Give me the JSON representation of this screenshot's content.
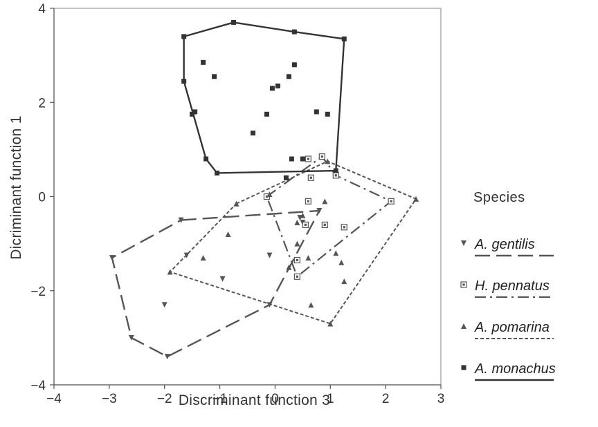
{
  "chart_data": {
    "type": "scatter",
    "title": "",
    "xlabel": "Discriminant function 3",
    "ylabel": "Dicriminant function 1",
    "xlim": [
      -4,
      3
    ],
    "ylim": [
      -4,
      4
    ],
    "x_ticks": [
      "−4",
      "−3",
      "−2",
      "−1",
      "0",
      "1",
      "2",
      "3"
    ],
    "y_ticks": [
      "−4",
      "−2",
      "0",
      "2",
      "4"
    ],
    "grid": false,
    "legend_title": "Species",
    "legend_position": "right",
    "series": [
      {
        "name": "A. gentilis",
        "marker": "triangle-down",
        "line_style": "long-dash",
        "color": "#555555",
        "points": [
          [
            -1.7,
            -0.5
          ],
          [
            -2.95,
            -1.3
          ],
          [
            -2.6,
            -3.0
          ],
          [
            -1.95,
            -3.4
          ],
          [
            -0.1,
            -2.3
          ],
          [
            0.8,
            -0.3
          ],
          [
            -1.6,
            -1.25
          ],
          [
            -2.0,
            -2.3
          ],
          [
            -0.95,
            -1.75
          ],
          [
            -0.1,
            -1.25
          ],
          [
            0.45,
            -0.45
          ],
          [
            0.5,
            -0.55
          ]
        ],
        "hull": [
          [
            -1.7,
            -0.5
          ],
          [
            0.8,
            -0.3
          ],
          [
            -0.1,
            -2.3
          ],
          [
            -1.95,
            -3.4
          ],
          [
            -2.6,
            -3.0
          ],
          [
            -2.95,
            -1.3
          ],
          [
            -1.7,
            -0.5
          ]
        ]
      },
      {
        "name": "H. pennatus",
        "marker": "square-dot",
        "line_style": "dash-dot",
        "color": "#555555",
        "points": [
          [
            -0.15,
            0.0
          ],
          [
            0.85,
            0.85
          ],
          [
            1.1,
            0.45
          ],
          [
            2.1,
            -0.1
          ],
          [
            0.4,
            -1.7
          ],
          [
            0.6,
            -0.1
          ],
          [
            0.65,
            0.4
          ],
          [
            0.55,
            -0.6
          ],
          [
            0.9,
            -0.6
          ],
          [
            1.25,
            -0.65
          ],
          [
            0.4,
            -1.35
          ],
          [
            0.6,
            0.8
          ]
        ],
        "hull": [
          [
            -0.15,
            0.0
          ],
          [
            0.85,
            0.85
          ],
          [
            1.1,
            0.45
          ],
          [
            2.1,
            -0.1
          ],
          [
            0.4,
            -1.7
          ],
          [
            -0.15,
            0.0
          ]
        ]
      },
      {
        "name": "A. pomarina",
        "marker": "triangle-up",
        "line_style": "short-dash",
        "color": "#555555",
        "points": [
          [
            -0.7,
            -0.15
          ],
          [
            0.95,
            0.75
          ],
          [
            2.55,
            -0.05
          ],
          [
            1.0,
            -2.7
          ],
          [
            -1.9,
            -1.6
          ],
          [
            -0.1,
            0.05
          ],
          [
            -1.3,
            -1.3
          ],
          [
            -0.85,
            -0.8
          ],
          [
            0.25,
            -1.5
          ],
          [
            0.4,
            -1.0
          ],
          [
            0.6,
            -1.3
          ],
          [
            0.65,
            -2.3
          ],
          [
            1.1,
            -1.2
          ],
          [
            1.2,
            -1.4
          ],
          [
            1.25,
            -1.8
          ],
          [
            0.4,
            -0.55
          ],
          [
            0.5,
            -0.4
          ],
          [
            0.9,
            -0.1
          ]
        ],
        "hull": [
          [
            -0.7,
            -0.15
          ],
          [
            0.95,
            0.75
          ],
          [
            2.55,
            -0.05
          ],
          [
            1.0,
            -2.7
          ],
          [
            -1.9,
            -1.6
          ],
          [
            -0.7,
            -0.15
          ]
        ]
      },
      {
        "name": "A. monachus",
        "marker": "square",
        "line_style": "solid",
        "color": "#333333",
        "points": [
          [
            -1.65,
            3.4
          ],
          [
            -0.75,
            3.7
          ],
          [
            0.35,
            3.5
          ],
          [
            1.25,
            3.35
          ],
          [
            1.1,
            0.55
          ],
          [
            -1.05,
            0.5
          ],
          [
            -1.25,
            0.8
          ],
          [
            -1.65,
            2.45
          ],
          [
            -1.3,
            2.85
          ],
          [
            -1.1,
            2.55
          ],
          [
            -1.5,
            1.75
          ],
          [
            -1.45,
            1.8
          ],
          [
            -0.15,
            1.75
          ],
          [
            -0.4,
            1.35
          ],
          [
            0.25,
            2.55
          ],
          [
            0.35,
            2.8
          ],
          [
            -0.05,
            2.3
          ],
          [
            0.05,
            2.35
          ],
          [
            0.75,
            1.8
          ],
          [
            0.95,
            1.75
          ],
          [
            0.3,
            0.8
          ],
          [
            0.5,
            0.8
          ],
          [
            0.2,
            0.4
          ]
        ],
        "hull": [
          [
            -1.65,
            3.4
          ],
          [
            -0.75,
            3.7
          ],
          [
            0.35,
            3.5
          ],
          [
            1.25,
            3.35
          ],
          [
            1.1,
            0.55
          ],
          [
            -1.05,
            0.5
          ],
          [
            -1.25,
            0.8
          ],
          [
            -1.65,
            2.45
          ],
          [
            -1.65,
            3.4
          ]
        ]
      }
    ]
  }
}
